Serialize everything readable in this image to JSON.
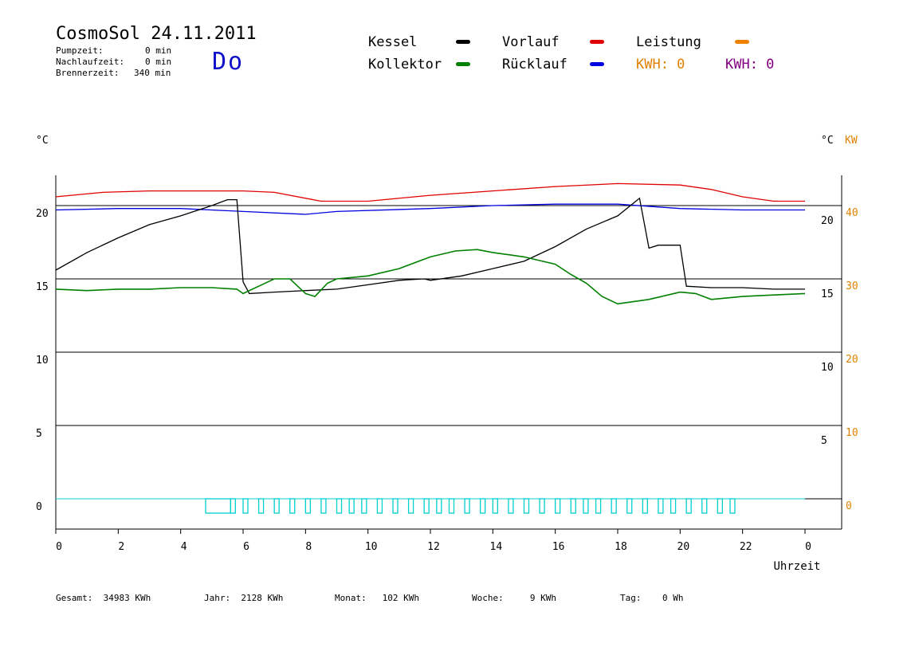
{
  "header": {
    "title": "CosmoSol 24.11.2011",
    "day": "Do",
    "info": [
      {
        "label": "Pumpzeit:",
        "value": "0 min"
      },
      {
        "label": "Nachlaufzeit:",
        "value": "0 min"
      },
      {
        "label": "Brennerzeit:",
        "value": "340 min"
      }
    ]
  },
  "legend": {
    "items": [
      {
        "name": "Kessel",
        "color": "#000000"
      },
      {
        "name": "Vorlauf",
        "color": "#e00000"
      },
      {
        "name": "Leistung",
        "color": "#f08000"
      },
      {
        "name": "Kollektor",
        "color": "#008000"
      },
      {
        "name": "Rücklauf",
        "color": "#0000e0"
      }
    ],
    "kwh1_label": "KWH: 0",
    "kwh1_color": "#e08000",
    "kwh2_label": "KWH: 0",
    "kwh2_color": "#800080"
  },
  "footer": {
    "gesamt": "Gesamt:  34983 KWh",
    "jahr": "Jahr:  2128 KWh",
    "monat": "Monat:   102 KWh",
    "woche": "Woche:     9 KWh",
    "tag": "Tag:    0 Wh"
  },
  "chart_data": {
    "type": "line",
    "xlabel": "Uhrzeit",
    "ylabel_left": "°C",
    "ylabel_right": [
      "°C",
      "KW"
    ],
    "xlim": [
      0,
      24
    ],
    "ylim": [
      -2,
      22.5
    ],
    "x_ticks": [
      "0",
      "2",
      "4",
      "6",
      "8",
      "10",
      "12",
      "14",
      "16",
      "18",
      "20",
      "22",
      "0"
    ],
    "y_ticks_left": [
      "0",
      "5",
      "10",
      "15",
      "20"
    ],
    "y_ticks_right_inner": [
      "5",
      "10",
      "15",
      "20"
    ],
    "y_ticks_right_kw": [
      "0",
      "10",
      "20",
      "30",
      "40"
    ],
    "grid": "horizontal",
    "series": [
      {
        "name": "Vorlauf",
        "color": "#e00000",
        "x": [
          0,
          0.5,
          1.5,
          3,
          5,
          6,
          7,
          8,
          8.5,
          10,
          12,
          14,
          16,
          18,
          20,
          21,
          22,
          23,
          24
        ],
        "y": [
          20.6,
          20.7,
          20.9,
          21.0,
          21.0,
          21.0,
          20.9,
          20.5,
          20.3,
          20.3,
          20.7,
          21.0,
          21.3,
          21.5,
          21.4,
          21.1,
          20.6,
          20.3,
          20.3
        ]
      },
      {
        "name": "Rücklauf",
        "color": "#0000e0",
        "x": [
          0,
          2,
          4,
          6,
          8,
          9,
          12,
          14,
          16,
          18,
          20,
          22,
          24
        ],
        "y": [
          19.7,
          19.8,
          19.8,
          19.6,
          19.4,
          19.6,
          19.8,
          20.0,
          20.1,
          20.1,
          19.8,
          19.7,
          19.7
        ]
      },
      {
        "name": "Kessel",
        "color": "#000000",
        "x": [
          0,
          1,
          2,
          3,
          4,
          5,
          5.5,
          5.8,
          6.0,
          6.2,
          7,
          8,
          9,
          10,
          11,
          11.8,
          12,
          13,
          14,
          15,
          16,
          17,
          18,
          18.7,
          19.0,
          19.3,
          20,
          20.2,
          21,
          22,
          23,
          24
        ],
        "y": [
          15.6,
          16.8,
          17.8,
          18.7,
          19.3,
          20.0,
          20.4,
          20.4,
          14.8,
          14.0,
          14.1,
          14.2,
          14.3,
          14.6,
          14.9,
          15.0,
          14.9,
          15.2,
          15.7,
          16.2,
          17.2,
          18.4,
          19.3,
          20.5,
          17.1,
          17.3,
          17.3,
          14.5,
          14.4,
          14.4,
          14.3,
          14.3
        ],
        "label": "Kessel"
      },
      {
        "name": "Kollektor",
        "color": "#008000",
        "x": [
          0,
          1,
          2,
          3,
          4,
          5,
          5.8,
          6,
          6.5,
          7,
          7.5,
          8,
          8.3,
          8.7,
          9,
          10,
          11,
          12,
          12.8,
          13.5,
          14,
          15,
          16,
          16.5,
          17,
          17.5,
          18,
          19,
          20,
          20.5,
          21,
          22,
          23,
          24
        ],
        "y": [
          14.3,
          14.2,
          14.3,
          14.3,
          14.4,
          14.4,
          14.3,
          14.0,
          14.5,
          15.0,
          15.0,
          14.0,
          13.8,
          14.7,
          15.0,
          15.2,
          15.7,
          16.5,
          16.9,
          17.0,
          16.8,
          16.5,
          16.0,
          15.3,
          14.7,
          13.8,
          13.3,
          13.6,
          14.1,
          14.0,
          13.6,
          13.8,
          13.9,
          14.0
        ]
      },
      {
        "name": "Leistung",
        "color": "#00d0d0",
        "x": [
          0,
          24
        ],
        "y": [
          0,
          0
        ],
        "pulses": [
          4.8,
          5.6,
          6.0,
          6.5,
          7.0,
          7.5,
          8.0,
          8.5,
          9.0,
          9.4,
          9.8,
          10.3,
          10.8,
          11.3,
          11.8,
          12.2,
          12.6,
          13.1,
          13.6,
          14.0,
          14.5,
          15.0,
          15.5,
          16.0,
          16.5,
          16.9,
          17.3,
          17.8,
          18.3,
          18.8,
          19.3,
          19.7,
          20.2,
          20.7,
          21.2,
          21.6
        ]
      }
    ]
  }
}
